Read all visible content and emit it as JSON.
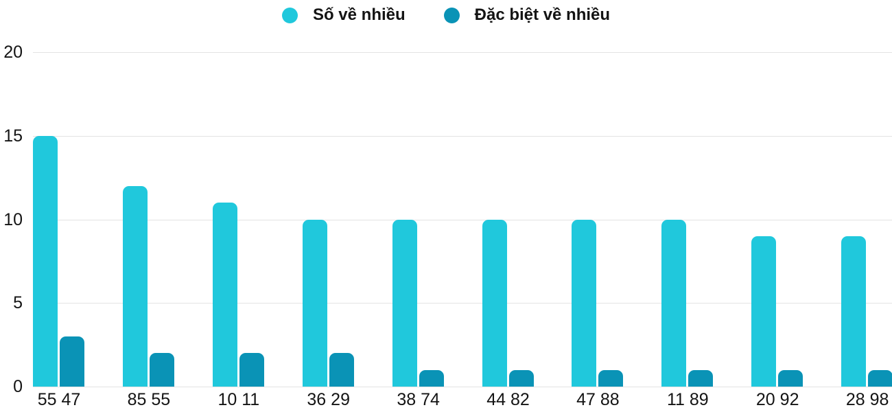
{
  "chart_data": {
    "type": "bar",
    "title": "",
    "xlabel": "",
    "ylabel": "",
    "categories": [
      "55 47",
      "85 55",
      "10 11",
      "36 29",
      "38 74",
      "44 82",
      "47 88",
      "11 89",
      "20 92",
      "28 98"
    ],
    "series": [
      {
        "name": "Số về nhiều",
        "color": "#20c8dc",
        "values": [
          15,
          12,
          11,
          10,
          10,
          10,
          10,
          10,
          9,
          9
        ]
      },
      {
        "name": "Đặc biệt về nhiều",
        "color": "#0a93b6",
        "values": [
          3,
          2,
          2,
          2,
          1,
          1,
          1,
          1,
          1,
          1
        ]
      }
    ],
    "yticks": [
      0,
      5,
      10,
      15,
      20
    ],
    "ylim": [
      0,
      20
    ],
    "grid": true,
    "legend_position": "top-center",
    "colors": {
      "grid_line": "#e3e3e3",
      "text": "#141414",
      "background": "#ffffff"
    }
  }
}
